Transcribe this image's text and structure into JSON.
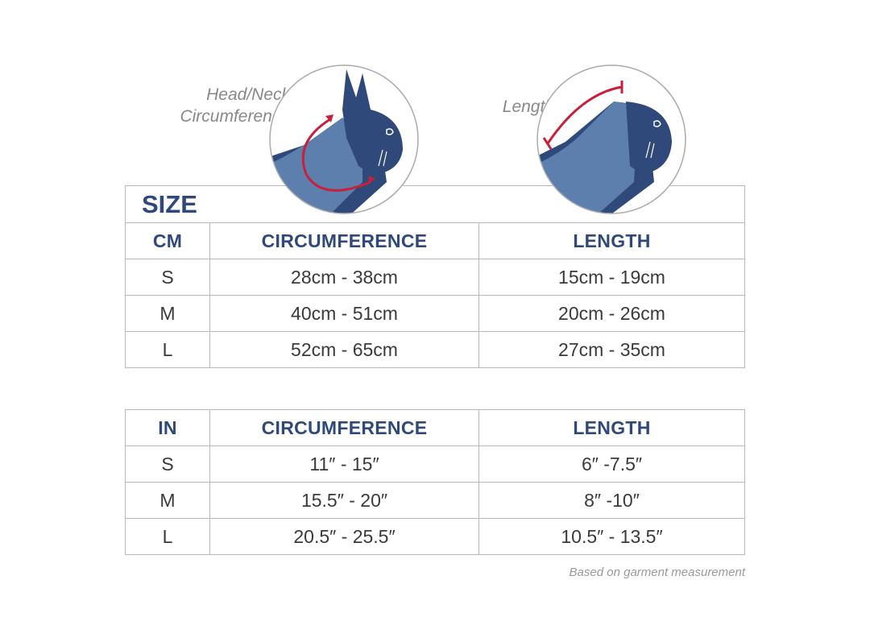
{
  "illustrations": {
    "circumference_label_line1": "Head/Neck",
    "circumference_label_line2": "Circumference",
    "length_label": "Length"
  },
  "colors": {
    "accent": "#c8203a",
    "navy": "#2f4a7a",
    "snood": "#5d7fae"
  },
  "cm_table": {
    "title": "SIZE",
    "headers": [
      "CM",
      "CIRCUMFERENCE",
      "LENGTH"
    ],
    "rows": [
      [
        "S",
        "28cm - 38cm",
        "15cm - 19cm"
      ],
      [
        "M",
        "40cm - 51cm",
        "20cm - 26cm"
      ],
      [
        "L",
        "52cm - 65cm",
        "27cm - 35cm"
      ]
    ]
  },
  "in_table": {
    "headers": [
      "IN",
      "CIRCUMFERENCE",
      "LENGTH"
    ],
    "rows": [
      [
        "S",
        "11″ - 15″",
        "6″ -7.5″"
      ],
      [
        "M",
        "15.5″ - 20″",
        "8″ -10″"
      ],
      [
        "L",
        "20.5″ - 25.5″",
        "10.5″ - 13.5″"
      ]
    ]
  },
  "footnote": "Based on garment measurement"
}
